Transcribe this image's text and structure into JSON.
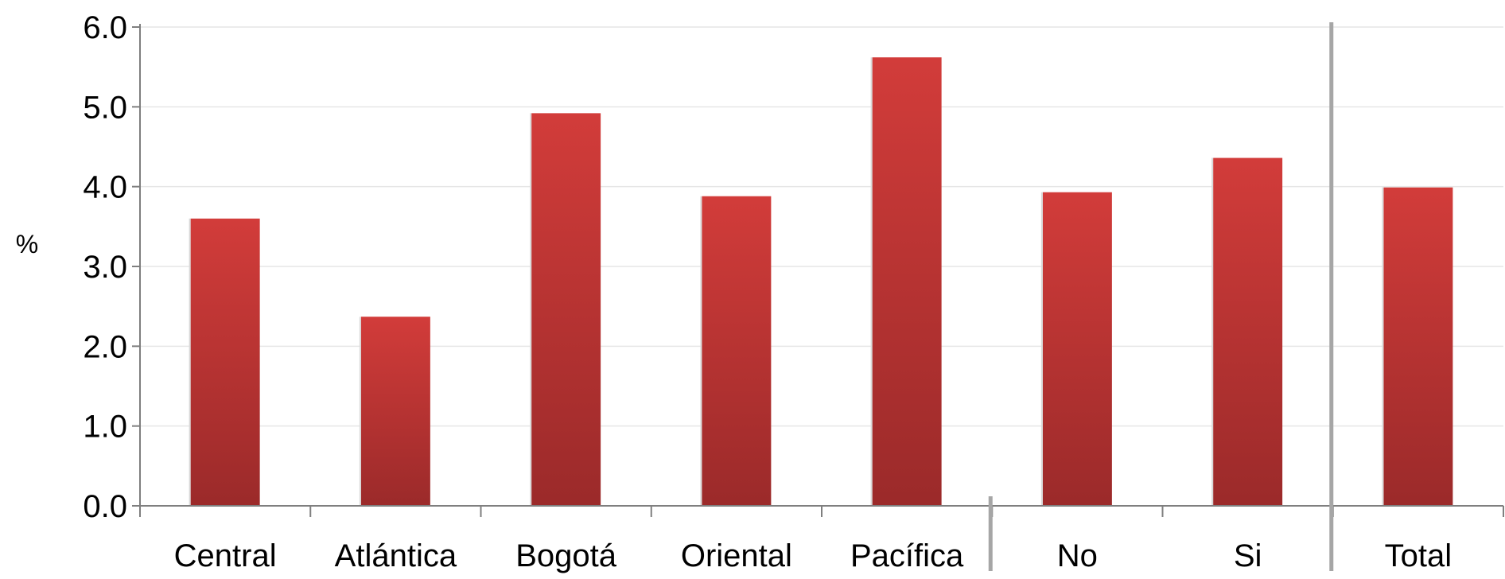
{
  "chart_data": {
    "type": "bar",
    "title": "",
    "xlabel": "",
    "ylabel": "%",
    "ylim": [
      0,
      6
    ],
    "yticks": [
      "0.0",
      "1.0",
      "2.0",
      "3.0",
      "4.0",
      "5.0",
      "6.0"
    ],
    "categories": [
      "Central",
      "Atlántica",
      "Bogotá",
      "Oriental",
      "Pacífica",
      "No",
      "Si",
      "Total"
    ],
    "values": [
      3.6,
      2.37,
      4.92,
      3.88,
      5.62,
      3.93,
      4.36,
      3.99
    ],
    "group_separators_after": [
      4,
      6
    ],
    "grid": true,
    "legend": "none",
    "colors": {
      "bar_top": "#d23c3a",
      "bar_bottom": "#9b2a2a",
      "grid": "#e6e6e6",
      "axis": "#7f7f7f"
    }
  }
}
